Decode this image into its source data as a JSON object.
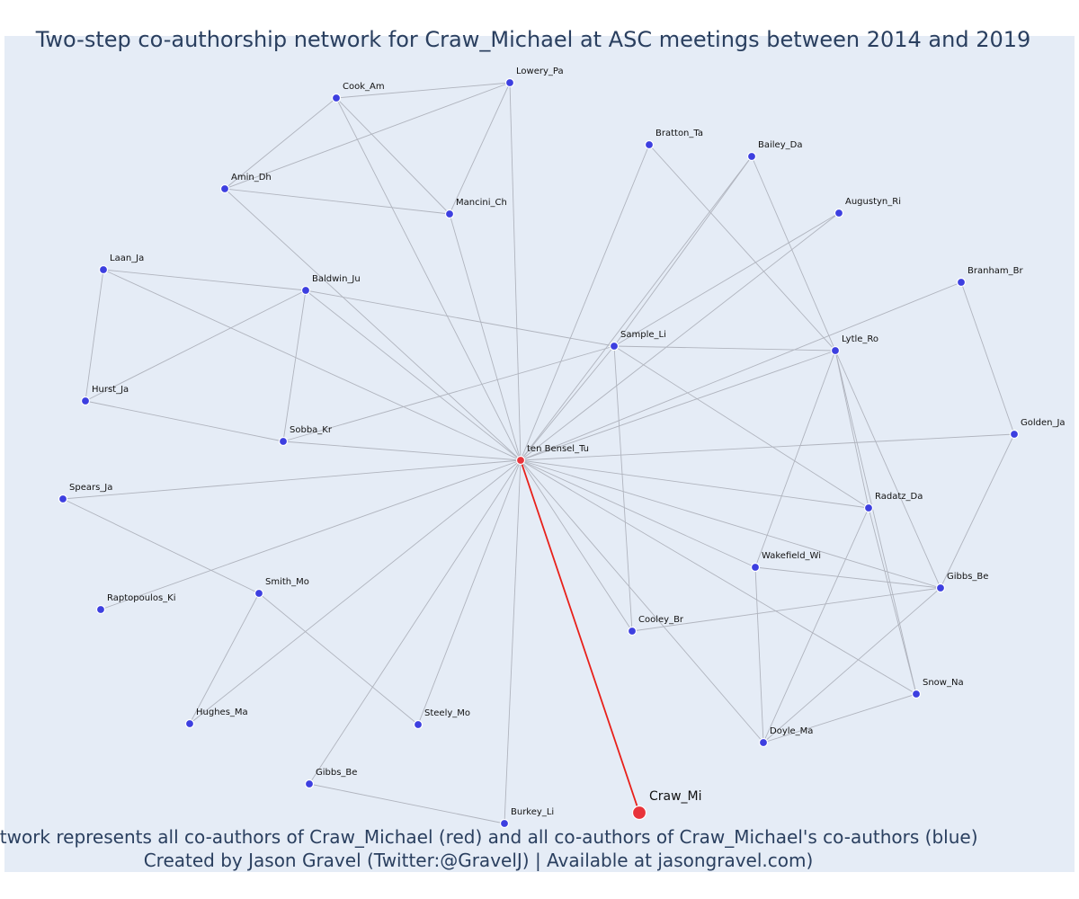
{
  "title": "Two-step co-authorship network for Craw_Michael at ASC meetings between 2014 and 2019",
  "footer": {
    "line1": "Network represents all co-authors of Craw_Michael (red) and all co-authors of Craw_Michael's co-authors (blue)",
    "line2": "Created by Jason Gravel (Twitter:@GravelJ) | Available at jasongravel.com)"
  },
  "colors": {
    "background": "#e5ecf6",
    "edge": "#b0b4be",
    "focus_edge": "#e8201a",
    "node": "#3d3fe0",
    "focus_node": "#e8333a",
    "text": "#2a3f5f"
  },
  "nodes": [
    {
      "id": "Lowery_Pa",
      "label": "Lowery_Pa",
      "role": "second_step"
    },
    {
      "id": "Cook_Am",
      "label": "Cook_Am",
      "role": "second_step"
    },
    {
      "id": "Bratton_Ta",
      "label": "Bratton_Ta",
      "role": "second_step"
    },
    {
      "id": "Bailey_Da",
      "label": "Bailey_Da",
      "role": "second_step"
    },
    {
      "id": "Amin_Dh",
      "label": "Amin_Dh",
      "role": "second_step"
    },
    {
      "id": "Mancini_Ch",
      "label": "Mancini_Ch",
      "role": "second_step"
    },
    {
      "id": "Augustyn_Ri",
      "label": "Augustyn_Ri",
      "role": "second_step"
    },
    {
      "id": "Laan_Ja",
      "label": "Laan_Ja",
      "role": "second_step"
    },
    {
      "id": "Branham_Br",
      "label": "Branham_Br",
      "role": "second_step"
    },
    {
      "id": "Baldwin_Ju",
      "label": "Baldwin_Ju",
      "role": "second_step"
    },
    {
      "id": "Sample_Li",
      "label": "Sample_Li",
      "role": "second_step"
    },
    {
      "id": "Lytle_Ro",
      "label": "Lytle_Ro",
      "role": "second_step"
    },
    {
      "id": "Hurst_Ja",
      "label": "Hurst_Ja",
      "role": "second_step"
    },
    {
      "id": "Golden_Ja",
      "label": "Golden_Ja",
      "role": "second_step"
    },
    {
      "id": "Sobba_Kr",
      "label": "Sobba_Kr",
      "role": "second_step"
    },
    {
      "id": "ten_Bensel_Tu",
      "label": "ten Bensel_Tu",
      "role": "coauthor"
    },
    {
      "id": "Spears_Ja",
      "label": "Spears_Ja",
      "role": "second_step"
    },
    {
      "id": "Radatz_Da",
      "label": "Radatz_Da",
      "role": "second_step"
    },
    {
      "id": "Smith_Mo",
      "label": "Smith_Mo",
      "role": "second_step"
    },
    {
      "id": "Wakefield_Wi",
      "label": "Wakefield_Wi",
      "role": "second_step"
    },
    {
      "id": "Raptopoulos_Ki",
      "label": "Raptopoulos_Ki",
      "role": "second_step"
    },
    {
      "id": "Gibbs_Be_r",
      "label": "Gibbs_Be",
      "role": "second_step"
    },
    {
      "id": "Cooley_Br",
      "label": "Cooley_Br",
      "role": "second_step"
    },
    {
      "id": "Snow_Na",
      "label": "Snow_Na",
      "role": "second_step"
    },
    {
      "id": "Hughes_Ma",
      "label": "Hughes_Ma",
      "role": "second_step"
    },
    {
      "id": "Steely_Mo",
      "label": "Steely_Mo",
      "role": "second_step"
    },
    {
      "id": "Doyle_Ma",
      "label": "Doyle_Ma",
      "role": "second_step"
    },
    {
      "id": "Gibbs_Be_l",
      "label": "Gibbs_Be",
      "role": "second_step"
    },
    {
      "id": "Burkey_Li",
      "label": "Burkey_Li",
      "role": "second_step"
    },
    {
      "id": "Craw_Mi",
      "label": "Craw_Mi",
      "role": "focus"
    }
  ],
  "edges": [
    [
      "ten_Bensel_Tu",
      "Craw_Mi"
    ],
    [
      "ten_Bensel_Tu",
      "Lowery_Pa"
    ],
    [
      "ten_Bensel_Tu",
      "Cook_Am"
    ],
    [
      "ten_Bensel_Tu",
      "Bratton_Ta"
    ],
    [
      "ten_Bensel_Tu",
      "Bailey_Da"
    ],
    [
      "ten_Bensel_Tu",
      "Amin_Dh"
    ],
    [
      "ten_Bensel_Tu",
      "Mancini_Ch"
    ],
    [
      "ten_Bensel_Tu",
      "Augustyn_Ri"
    ],
    [
      "ten_Bensel_Tu",
      "Laan_Ja"
    ],
    [
      "ten_Bensel_Tu",
      "Branham_Br"
    ],
    [
      "ten_Bensel_Tu",
      "Baldwin_Ju"
    ],
    [
      "ten_Bensel_Tu",
      "Sample_Li"
    ],
    [
      "ten_Bensel_Tu",
      "Lytle_Ro"
    ],
    [
      "ten_Bensel_Tu",
      "Golden_Ja"
    ],
    [
      "ten_Bensel_Tu",
      "Sobba_Kr"
    ],
    [
      "ten_Bensel_Tu",
      "Spears_Ja"
    ],
    [
      "ten_Bensel_Tu",
      "Radatz_Da"
    ],
    [
      "ten_Bensel_Tu",
      "Wakefield_Wi"
    ],
    [
      "ten_Bensel_Tu",
      "Raptopoulos_Ki"
    ],
    [
      "ten_Bensel_Tu",
      "Gibbs_Be_r"
    ],
    [
      "ten_Bensel_Tu",
      "Cooley_Br"
    ],
    [
      "ten_Bensel_Tu",
      "Snow_Na"
    ],
    [
      "ten_Bensel_Tu",
      "Hughes_Ma"
    ],
    [
      "ten_Bensel_Tu",
      "Steely_Mo"
    ],
    [
      "ten_Bensel_Tu",
      "Doyle_Ma"
    ],
    [
      "ten_Bensel_Tu",
      "Gibbs_Be_l"
    ],
    [
      "ten_Bensel_Tu",
      "Burkey_Li"
    ],
    [
      "Cook_Am",
      "Lowery_Pa"
    ],
    [
      "Cook_Am",
      "Amin_Dh"
    ],
    [
      "Cook_Am",
      "Mancini_Ch"
    ],
    [
      "Lowery_Pa",
      "Amin_Dh"
    ],
    [
      "Lowery_Pa",
      "Mancini_Ch"
    ],
    [
      "Amin_Dh",
      "Mancini_Ch"
    ],
    [
      "Laan_Ja",
      "Baldwin_Ju"
    ],
    [
      "Laan_Ja",
      "Hurst_Ja"
    ],
    [
      "Baldwin_Ju",
      "Hurst_Ja"
    ],
    [
      "Baldwin_Ju",
      "Sobba_Kr"
    ],
    [
      "Baldwin_Ju",
      "Sample_Li"
    ],
    [
      "Hurst_Ja",
      "Sobba_Kr"
    ],
    [
      "Sample_Li",
      "Sobba_Kr"
    ],
    [
      "Sample_Li",
      "Lytle_Ro"
    ],
    [
      "Sample_Li",
      "Bailey_Da"
    ],
    [
      "Sample_Li",
      "Augustyn_Ri"
    ],
    [
      "Sample_Li",
      "Cooley_Br"
    ],
    [
      "Sample_Li",
      "Radatz_Da"
    ],
    [
      "Bratton_Ta",
      "Lytle_Ro"
    ],
    [
      "Bailey_Da",
      "Lytle_Ro"
    ],
    [
      "Lytle_Ro",
      "Radatz_Da"
    ],
    [
      "Lytle_Ro",
      "Wakefield_Wi"
    ],
    [
      "Lytle_Ro",
      "Gibbs_Be_r"
    ],
    [
      "Lytle_Ro",
      "Snow_Na"
    ],
    [
      "Branham_Br",
      "Golden_Ja"
    ],
    [
      "Golden_Ja",
      "Gibbs_Be_r"
    ],
    [
      "Radatz_Da",
      "Doyle_Ma"
    ],
    [
      "Radatz_Da",
      "Snow_Na"
    ],
    [
      "Wakefield_Wi",
      "Gibbs_Be_r"
    ],
    [
      "Wakefield_Wi",
      "Doyle_Ma"
    ],
    [
      "Gibbs_Be_r",
      "Cooley_Br"
    ],
    [
      "Gibbs_Be_r",
      "Doyle_Ma"
    ],
    [
      "Doyle_Ma",
      "Snow_Na"
    ],
    [
      "Spears_Ja",
      "Smith_Mo"
    ],
    [
      "Smith_Mo",
      "Hughes_Ma"
    ],
    [
      "Smith_Mo",
      "Steely_Mo"
    ],
    [
      "Gibbs_Be_l",
      "Burkey_Li"
    ]
  ]
}
